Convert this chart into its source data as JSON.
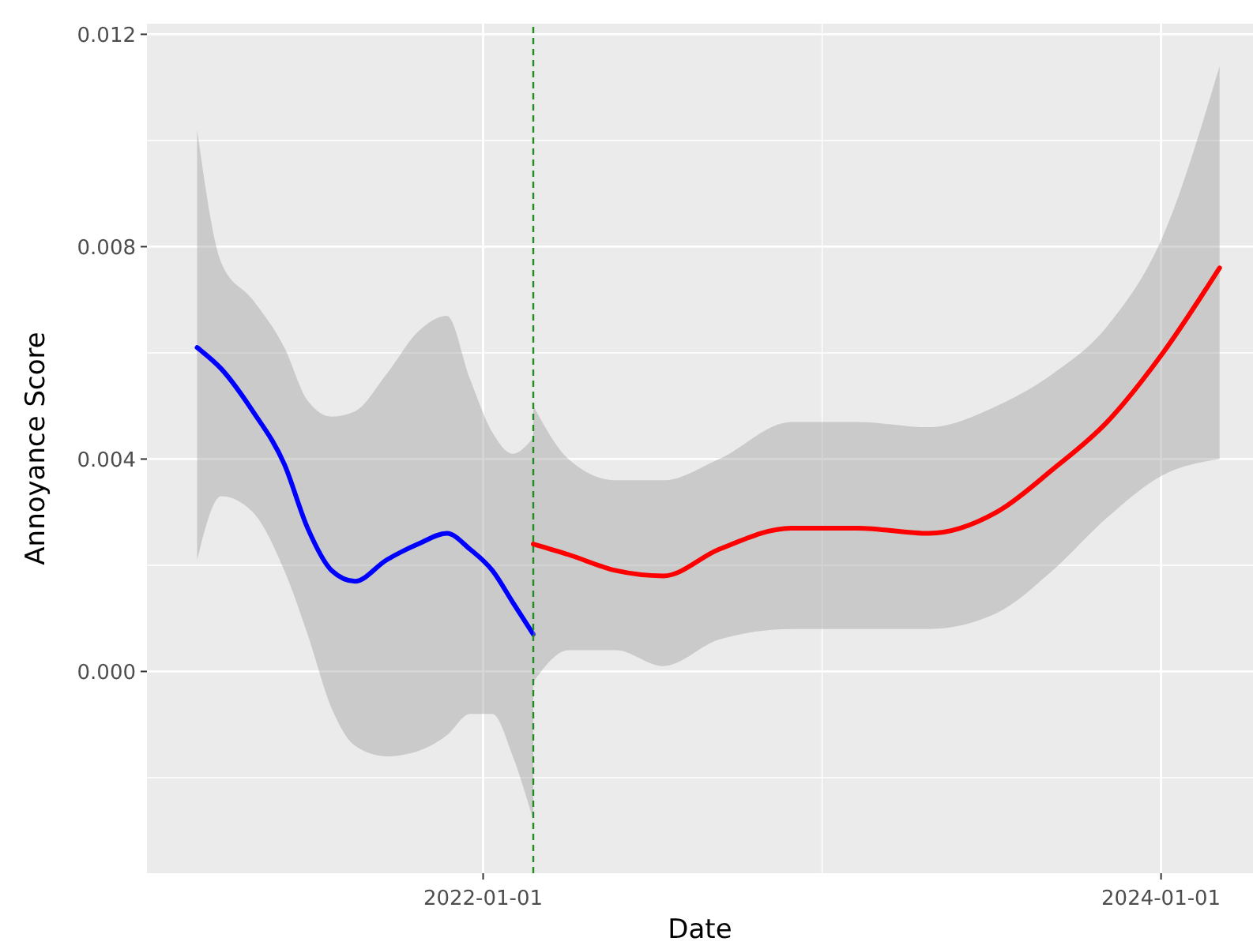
{
  "chart_data": {
    "type": "line",
    "xlabel": "Date",
    "ylabel": "Annoyance Score",
    "xlim": [
      "2021-01-04",
      "2024-04-09"
    ],
    "xticks": [
      "2022-01-01",
      {
        "value": "2023-01-01",
        "label": null
      },
      "2024-01-01"
    ],
    "ylim": [
      -0.0038,
      0.0122
    ],
    "yticks": [
      {
        "value": -0.002,
        "label": null
      },
      {
        "value": 0,
        "label": "0.000"
      },
      {
        "value": 0.002,
        "label": null
      },
      0.004,
      {
        "value": 0.006,
        "label": null
      },
      0.008,
      {
        "value": 0.01,
        "label": null
      },
      0.012
    ],
    "grid": true,
    "line_style": "solid",
    "ref_lines": [
      {
        "axis": "x",
        "value": "2022-02-24",
        "color": "#228b22",
        "line_style": "dashed"
      }
    ],
    "series": [
      {
        "color": "#0000ff",
        "x": [
          "2021-02-27",
          "2021-03-25",
          "2021-04-28",
          "2021-06-01",
          "2021-06-26",
          "2021-07-22",
          "2021-08-16",
          "2021-09-19",
          "2021-10-23",
          "2021-11-23",
          "2021-12-18",
          "2022-01-11",
          "2022-02-02",
          "2022-02-24"
        ],
        "values": [
          0.0061,
          0.0057,
          0.0049,
          0.0039,
          0.0027,
          0.0019,
          0.0017,
          0.0021,
          0.0024,
          0.0026,
          0.0023,
          0.0019,
          0.0013,
          0.0007
        ],
        "upper": [
          0.0102,
          0.0077,
          0.007,
          0.0061,
          0.0051,
          0.0048,
          0.0049,
          0.0056,
          0.0064,
          0.0067,
          0.0055,
          0.0045,
          0.0041,
          0.0044
        ],
        "lower": [
          0.0021,
          0.0033,
          0.003,
          0.0019,
          0.0007,
          -0.0007,
          -0.0014,
          -0.0016,
          -0.0015,
          -0.0012,
          -0.0008,
          -0.0008,
          -0.0016,
          -0.0028
        ]
      },
      {
        "color": "#ff0000",
        "x": [
          "2022-02-24",
          "2022-04-03",
          "2022-05-24",
          "2022-07-14",
          "2022-09-12",
          "2022-11-29",
          "2023-02-08",
          "2023-04-26",
          "2023-07-08",
          "2023-09-06",
          "2023-11-04",
          "2024-01-03",
          "2024-03-04"
        ],
        "values": [
          0.0024,
          0.0022,
          0.0019,
          0.0018,
          0.0023,
          0.0027,
          0.0027,
          0.0026,
          0.003,
          0.0038,
          0.0047,
          0.006,
          0.0076
        ],
        "upper": [
          0.005,
          0.004,
          0.0036,
          0.0036,
          0.004,
          0.0047,
          0.0047,
          0.0046,
          0.005,
          0.0056,
          0.0065,
          0.0082,
          0.0114
        ],
        "lower": [
          -0.0002,
          0.0004,
          0.0004,
          0.0001,
          0.0006,
          0.0008,
          0.0008,
          0.0008,
          0.0011,
          0.0019,
          0.0029,
          0.0037,
          0.004
        ]
      }
    ]
  }
}
